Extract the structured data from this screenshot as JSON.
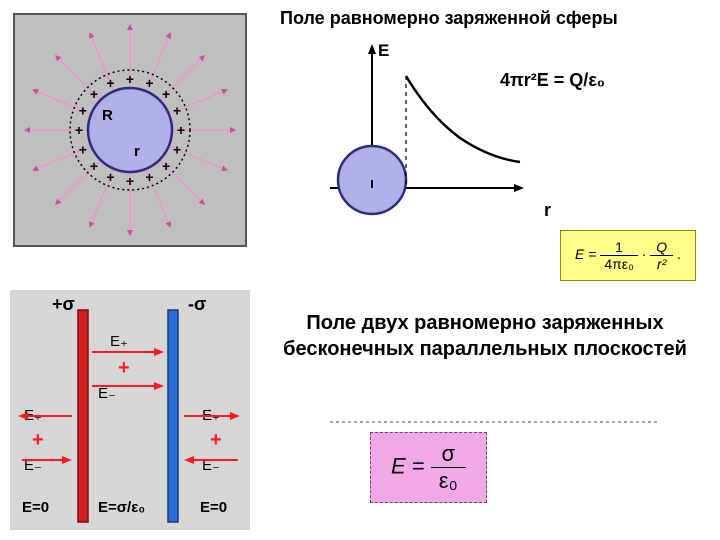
{
  "titles": {
    "sphere": "Поле равномерно заряженной сферы",
    "planes": "Поле двух равномерно заряженных бесконечных параллельных плоскостей"
  },
  "sphere_diagram": {
    "bg_color": "#bfbfbf",
    "border_color": "#555555",
    "dotted_circle_color": "#000000",
    "inner_circle_fill": "#b2b0e8",
    "inner_circle_stroke": "#2e2c7a",
    "plus_color": "#000000",
    "arrow_color": "#d946a6",
    "arrow_shaft_color": "#f58ed0",
    "R_label": "R",
    "r_label": "r",
    "outer_r": 100,
    "dotted_r": 60,
    "inner_r": 42,
    "n_arrows": 16,
    "n_plus": 16
  },
  "e_graph": {
    "y_label": "E",
    "x_label": "r",
    "axis_color": "#000000",
    "circle_fill": "#b2b0e8",
    "circle_stroke": "#2e2c7a",
    "circle_r": 34,
    "dash_color": "#000000",
    "curve_color": "#000000"
  },
  "gauss_formula": "4πr²E = Q/ε₀",
  "gauss_formula_fontsize": 18,
  "e_formula_box": {
    "text": "E = (1 / 4πε₀) · (Q / r²).",
    "bg": "#ffff8a",
    "border": "#8a8a00",
    "plain_left": "E = ",
    "frac1_top": "1",
    "frac1_bot": "4πε₀",
    "dot": " · ",
    "frac2_top": "Q",
    "frac2_bot": "r²",
    "tail": "."
  },
  "planes_diagram": {
    "bg_color": "#d6d6d6",
    "pos_plate_color": "#d41f1f",
    "pos_plate_border": "#7a0f0f",
    "neg_plate_color": "#2b6fd6",
    "neg_plate_border": "#10387a",
    "sigma_plus": "+σ",
    "sigma_minus": "-σ",
    "Eplus": "E₊",
    "Eminus": "E₋",
    "plus": "+",
    "E0": "E=0",
    "E_mid": "E=σ/ε₀",
    "arrow_color": "#ff1a1a",
    "text_color": "#000000"
  },
  "sigma_formula_box": {
    "bg": "#f0a8e6",
    "border": "#704068",
    "text_color": "#000000",
    "lhs": "E = ",
    "top": "σ",
    "bot": "ε₀"
  },
  "layout": {
    "title_fontsize": 18,
    "planes_title_fontsize": 20
  }
}
